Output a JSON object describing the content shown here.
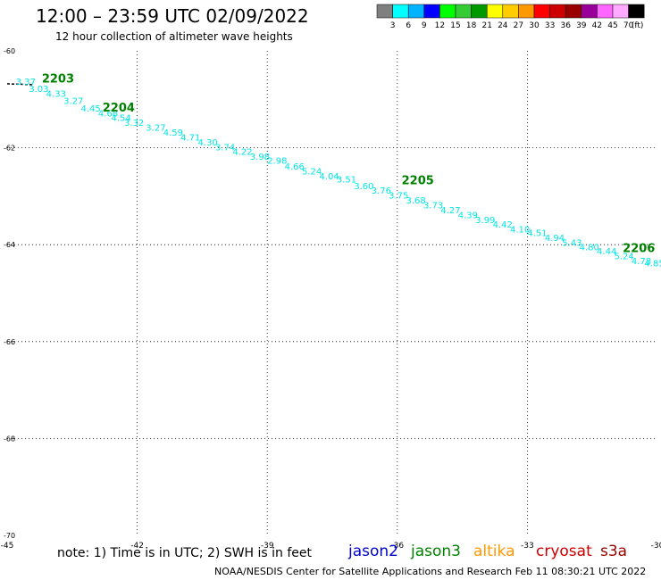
{
  "title": "12:00 – 23:59 UTC 02/09/2022",
  "subtitle": "12 hour collection of altimeter wave heights",
  "colorbar": {
    "colors": [
      "#7f7f7f",
      "#00ffff",
      "#00b3ff",
      "#0000ff",
      "#00ff00",
      "#33cc33",
      "#009900",
      "#ffff00",
      "#ffcc00",
      "#ff9900",
      "#ff0000",
      "#cc0000",
      "#990000",
      "#990099",
      "#ff66ff",
      "#ffaaff",
      "#000000"
    ],
    "labels": [
      "3",
      "6",
      "9",
      "12",
      "15",
      "18",
      "21",
      "24",
      "27",
      "30",
      "33",
      "36",
      "39",
      "42",
      "45",
      "70"
    ],
    "unit": "(ft)"
  },
  "map": {
    "lon_range": [
      -45,
      -30
    ],
    "lat_range": [
      -70,
      -60
    ],
    "x_ticks": [
      "-45",
      "-42",
      "-39",
      "-36",
      "-33",
      "-30"
    ],
    "y_ticks": [
      "-60",
      "-62",
      "-64",
      "-66",
      "-68",
      "-70"
    ],
    "grid_lons": [
      -42,
      -39,
      -36,
      -33
    ],
    "grid_lats": [
      -62,
      -64,
      -66,
      -68
    ]
  },
  "track_color": "#00e5e5",
  "label_color": "#008000",
  "track": [
    {
      "lon": -44.8,
      "lat": -60.7,
      "v": "3.37"
    },
    {
      "lon": -44.5,
      "lat": -60.85,
      "v": "3.03"
    },
    {
      "lon": -44.1,
      "lat": -60.95,
      "v": "4.33"
    },
    {
      "lon": -43.7,
      "lat": -61.1,
      "v": "3.27"
    },
    {
      "lon": -43.3,
      "lat": -61.25,
      "v": "4.45"
    },
    {
      "lon": -42.9,
      "lat": -61.35,
      "v": "4.68"
    },
    {
      "lon": -42.6,
      "lat": -61.45,
      "v": "4.54"
    },
    {
      "lon": -42.3,
      "lat": -61.55,
      "v": "3.32"
    },
    {
      "lon": -41.8,
      "lat": -61.65,
      "v": "3.27"
    },
    {
      "lon": -41.4,
      "lat": -61.75,
      "v": "4.59"
    },
    {
      "lon": -41.0,
      "lat": -61.85,
      "v": "4.71"
    },
    {
      "lon": -40.6,
      "lat": -61.95,
      "v": "4.30"
    },
    {
      "lon": -40.2,
      "lat": -62.05,
      "v": "3.74"
    },
    {
      "lon": -39.8,
      "lat": -62.15,
      "v": "4.22"
    },
    {
      "lon": -39.4,
      "lat": -62.25,
      "v": "3.98"
    },
    {
      "lon": -39.0,
      "lat": -62.33,
      "v": "2.98"
    },
    {
      "lon": -38.6,
      "lat": -62.45,
      "v": "4.66"
    },
    {
      "lon": -38.2,
      "lat": -62.55,
      "v": "5.24"
    },
    {
      "lon": -37.8,
      "lat": -62.65,
      "v": "4.04"
    },
    {
      "lon": -37.4,
      "lat": -62.72,
      "v": "3.51"
    },
    {
      "lon": -37.0,
      "lat": -62.85,
      "v": "3.60"
    },
    {
      "lon": -36.6,
      "lat": -62.95,
      "v": "3.76"
    },
    {
      "lon": -36.2,
      "lat": -63.05,
      "v": "3.75"
    },
    {
      "lon": -35.8,
      "lat": -63.15,
      "v": "3.68"
    },
    {
      "lon": -35.4,
      "lat": -63.25,
      "v": "3.73"
    },
    {
      "lon": -35.0,
      "lat": -63.35,
      "v": "4.27"
    },
    {
      "lon": -34.6,
      "lat": -63.45,
      "v": "4.39"
    },
    {
      "lon": -34.2,
      "lat": -63.55,
      "v": "3.99"
    },
    {
      "lon": -33.8,
      "lat": -63.65,
      "v": "4.42"
    },
    {
      "lon": -33.4,
      "lat": -63.75,
      "v": "4.10"
    },
    {
      "lon": -33.0,
      "lat": -63.82,
      "v": "4.51"
    },
    {
      "lon": -32.6,
      "lat": -63.92,
      "v": "4.94"
    },
    {
      "lon": -32.2,
      "lat": -64.02,
      "v": "5.43"
    },
    {
      "lon": -31.8,
      "lat": -64.12,
      "v": "4.80"
    },
    {
      "lon": -31.4,
      "lat": -64.2,
      "v": "4.44"
    },
    {
      "lon": -31.0,
      "lat": -64.3,
      "v": "5.24"
    },
    {
      "lon": -30.6,
      "lat": -64.4,
      "v": "4.78"
    },
    {
      "lon": -30.3,
      "lat": -64.45,
      "v": "4.85"
    }
  ],
  "time_labels": [
    {
      "lon": -44.2,
      "lat": -60.65,
      "t": "2203"
    },
    {
      "lon": -42.8,
      "lat": -61.25,
      "t": "2204"
    },
    {
      "lon": -35.9,
      "lat": -62.75,
      "t": "2205"
    },
    {
      "lon": -30.8,
      "lat": -64.15,
      "t": "2206"
    }
  ],
  "start_marker": {
    "lon": -45.0,
    "lat": -60.68
  },
  "note": "note: 1) Time is in UTC; 2) SWH is in feet",
  "satellites": [
    {
      "name": "jason2",
      "color": "#0000cc"
    },
    {
      "name": "jason3",
      "color": "#008000"
    },
    {
      "name": "altika",
      "color": "#ff9900"
    },
    {
      "name": "cryosat",
      "color": "#cc0000"
    },
    {
      "name": "s3a",
      "color": "#990000"
    }
  ],
  "footer": "NOAA/NESDIS Center for Satellite Applications and Research   Feb 11 08:30:21 UTC 2022"
}
